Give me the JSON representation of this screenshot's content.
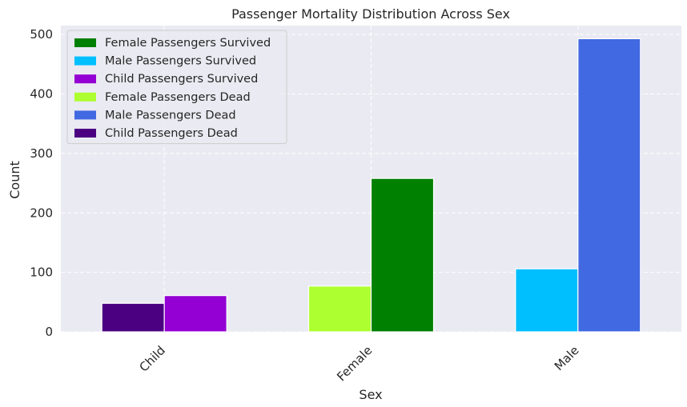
{
  "chart_data": {
    "type": "bar",
    "title": "Passenger Mortality Distribution Across Sex",
    "xlabel": "Sex",
    "ylabel": "Count",
    "categories": [
      "Child",
      "Female",
      "Male"
    ],
    "ylim": [
      0,
      515
    ],
    "yticks": [
      0,
      100,
      200,
      300,
      400,
      500
    ],
    "grid": true,
    "legend_position": "top-left",
    "background_color": "#eaeaf2",
    "series": [
      {
        "name": "Female Passengers Survived",
        "color": "#008000",
        "values": [
          null,
          258,
          null
        ]
      },
      {
        "name": "Male Passengers Survived",
        "color": "#00bfff",
        "values": [
          null,
          null,
          106
        ]
      },
      {
        "name": "Child Passengers Survived",
        "color": "#9400d3",
        "values": [
          61,
          null,
          null
        ]
      },
      {
        "name": "Female Passengers Dead",
        "color": "#adff2f",
        "values": [
          null,
          77,
          null
        ]
      },
      {
        "name": "Male Passengers Dead",
        "color": "#4169e1",
        "values": [
          null,
          null,
          493
        ]
      },
      {
        "name": "Child Passengers Dead",
        "color": "#4b0082",
        "values": [
          48,
          null,
          null
        ]
      }
    ],
    "bars": [
      {
        "series": 5,
        "category": 0,
        "slot": 0
      },
      {
        "series": 2,
        "category": 0,
        "slot": 1
      },
      {
        "series": 3,
        "category": 1,
        "slot": 0
      },
      {
        "series": 0,
        "category": 1,
        "slot": 1
      },
      {
        "series": 1,
        "category": 2,
        "slot": 0
      },
      {
        "series": 4,
        "category": 2,
        "slot": 1
      }
    ]
  }
}
